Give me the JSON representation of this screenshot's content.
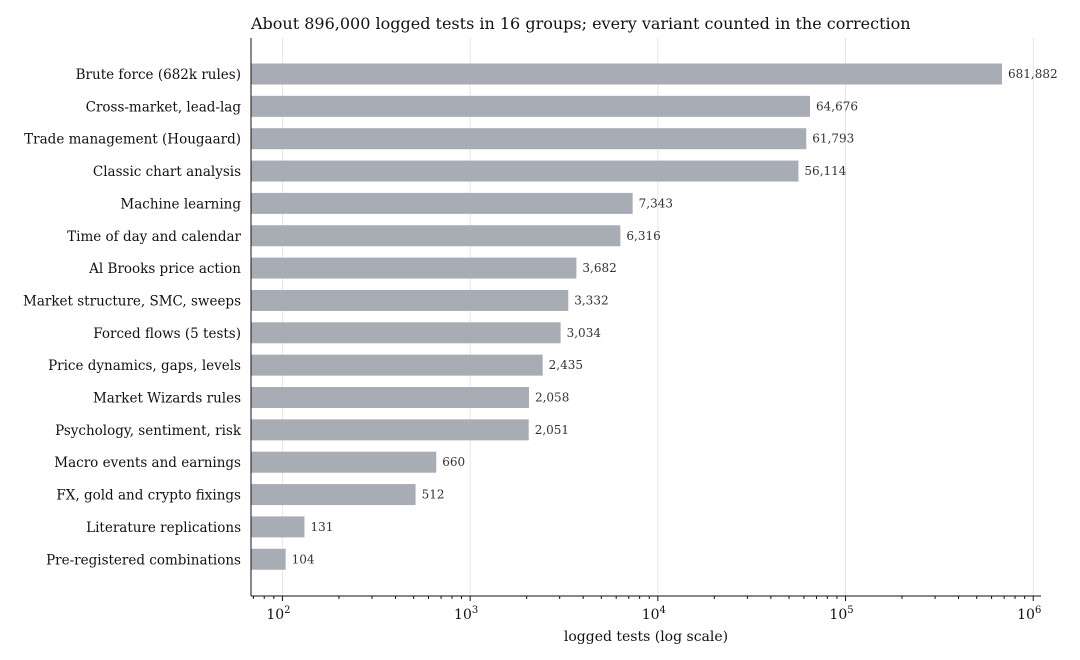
{
  "chart_data": {
    "type": "bar",
    "orientation": "horizontal",
    "title": "About 896,000 logged tests in 16 groups; every variant counted in the correction",
    "xlabel": "logged tests (log scale)",
    "ylabel": "",
    "x_scale": "log",
    "xlim": [
      68,
      1100000
    ],
    "grid": "vertical",
    "bar_color": "#a8adb5",
    "tick_labels": [
      {
        "base": "10",
        "exp": "2",
        "value": 100
      },
      {
        "base": "10",
        "exp": "3",
        "value": 1000
      },
      {
        "base": "10",
        "exp": "4",
        "value": 10000
      },
      {
        "base": "10",
        "exp": "5",
        "value": 100000
      },
      {
        "base": "10",
        "exp": "6",
        "value": 1000000
      }
    ],
    "categories": [
      "Brute force (682k rules)",
      "Cross-market, lead-lag",
      "Trade management (Hougaard)",
      "Classic chart analysis",
      "Machine learning",
      "Time of day and calendar",
      "Al Brooks price action",
      "Market structure, SMC, sweeps",
      "Forced flows (5 tests)",
      "Price dynamics, gaps, levels",
      "Market Wizards rules",
      "Psychology, sentiment, risk",
      "Macro events and earnings",
      "FX, gold and crypto fixings",
      "Literature replications",
      "Pre-registered combinations"
    ],
    "values": [
      681882,
      64676,
      61793,
      56114,
      7343,
      6316,
      3682,
      3332,
      3034,
      2435,
      2058,
      2051,
      660,
      512,
      131,
      104
    ],
    "value_labels": [
      "681,882",
      "64,676",
      "61,793",
      "56,114",
      "7,343",
      "6,316",
      "3,682",
      "3,332",
      "3,034",
      "2,435",
      "2,058",
      "2,051",
      "660",
      "512",
      "131",
      "104"
    ]
  }
}
